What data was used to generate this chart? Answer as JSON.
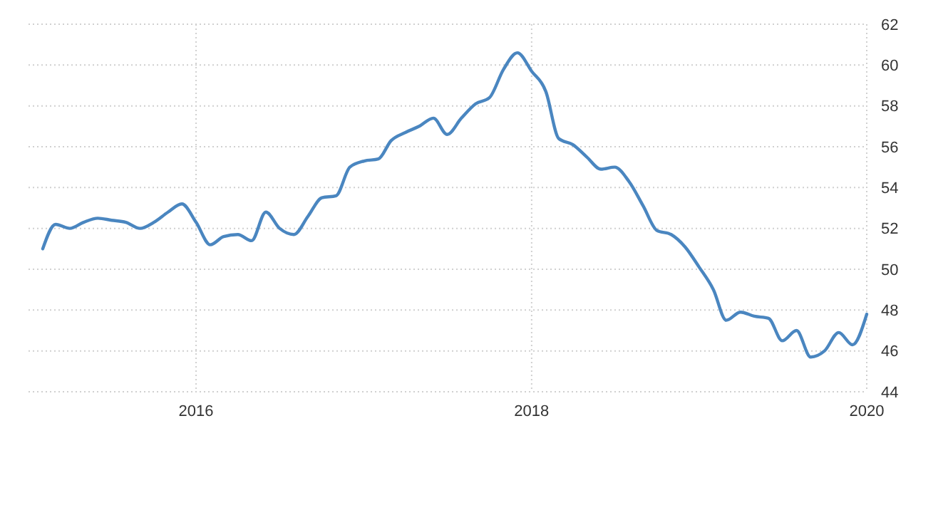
{
  "chart_data": {
    "type": "line",
    "x": [
      "2015-02",
      "2015-03",
      "2015-04",
      "2015-05",
      "2015-06",
      "2015-07",
      "2015-08",
      "2015-09",
      "2015-10",
      "2015-11",
      "2015-12",
      "2016-01",
      "2016-02",
      "2016-03",
      "2016-04",
      "2016-05",
      "2016-06",
      "2016-07",
      "2016-08",
      "2016-09",
      "2016-10",
      "2016-11",
      "2016-12",
      "2017-01",
      "2017-02",
      "2017-03",
      "2017-04",
      "2017-05",
      "2017-06",
      "2017-07",
      "2017-08",
      "2017-09",
      "2017-10",
      "2017-11",
      "2017-12",
      "2018-01",
      "2018-02",
      "2018-03",
      "2018-04",
      "2018-05",
      "2018-06",
      "2018-07",
      "2018-08",
      "2018-09",
      "2018-10",
      "2018-11",
      "2018-12",
      "2019-01",
      "2019-02",
      "2019-03",
      "2019-04",
      "2019-05",
      "2019-06",
      "2019-07",
      "2019-08",
      "2019-09",
      "2019-10",
      "2019-11",
      "2019-12",
      "2020-01"
    ],
    "series": [
      {
        "color": "#4a86c0",
        "values": [
          51.0,
          52.2,
          52.0,
          52.3,
          52.5,
          52.4,
          52.3,
          52.0,
          52.3,
          52.8,
          53.2,
          52.3,
          51.2,
          51.6,
          51.7,
          51.4,
          52.8,
          52.0,
          51.7,
          52.6,
          53.5,
          53.6,
          55.0,
          55.3,
          55.4,
          56.3,
          56.7,
          57.0,
          57.4,
          56.6,
          57.4,
          58.1,
          58.4,
          59.8,
          60.6,
          59.7,
          58.7,
          56.4,
          56.1,
          55.5,
          54.9,
          55.0,
          54.3,
          53.1,
          51.9,
          51.7,
          51.1,
          50.1,
          49.0,
          47.5,
          47.9,
          47.7,
          47.6,
          46.5,
          47.0,
          45.7,
          46.0,
          46.9,
          46.3,
          47.8
        ]
      }
    ],
    "xlim": [
      "2015-01",
      "2020-01"
    ],
    "xticks": [
      {
        "value": "2016-01",
        "label": "2016"
      },
      {
        "value": "2018-01",
        "label": "2018"
      },
      {
        "value": "2020-01",
        "label": "2020"
      }
    ],
    "ylim": [
      44,
      62
    ],
    "yticks": [
      44,
      46,
      48,
      50,
      52,
      54,
      56,
      58,
      60,
      62
    ],
    "grid": true,
    "marker": "none",
    "line_style": "solid"
  }
}
